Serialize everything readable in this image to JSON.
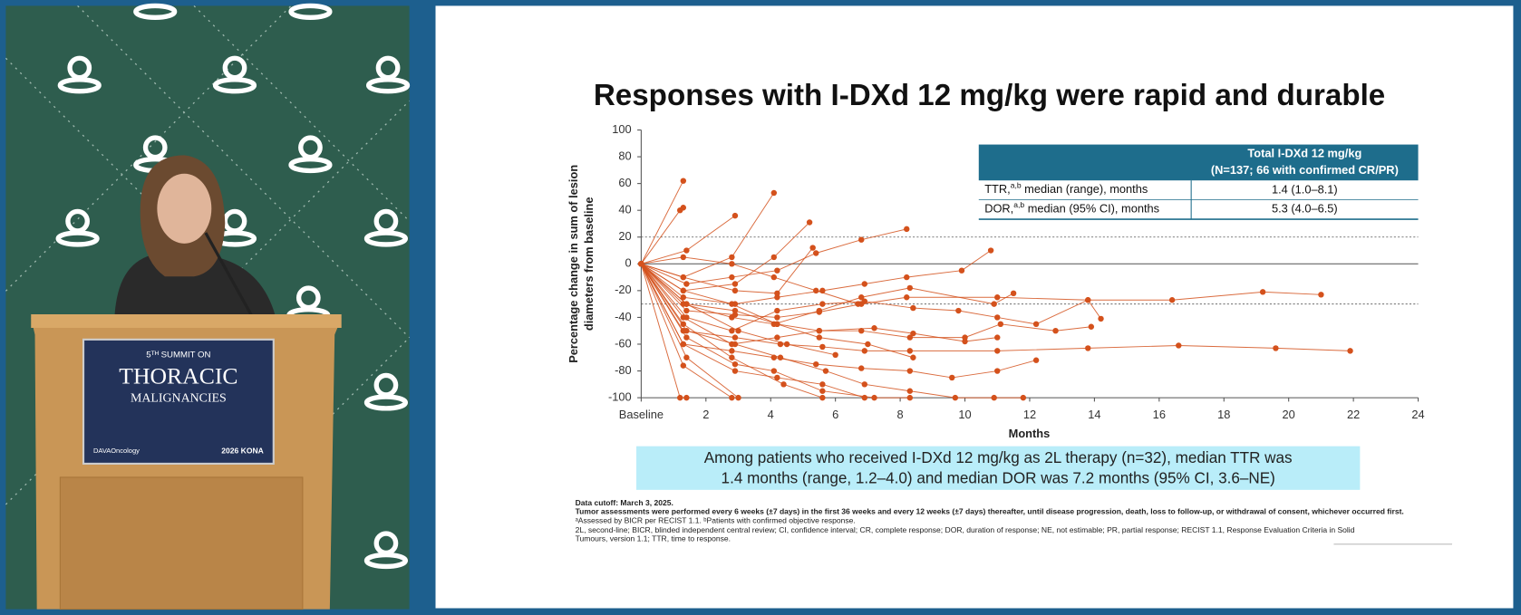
{
  "podium_sign": {
    "line1": "5ᵀᴴ SUMMIT ON",
    "line2": "THORACIC",
    "line3": "MALIGNANCIES",
    "logo_left": "DAVAOncology",
    "logo_right": "2026 KONA"
  },
  "slide": {
    "title": "Responses with I-DXd 12 mg/kg were rapid and durable",
    "table": {
      "header": [
        "Total I-DXd 12 mg/kg",
        "(N=137; 66 with confirmed CR/PR)"
      ],
      "rows": [
        {
          "label": "TTR,",
          "sup": "a,b",
          "rest": " median (range), months",
          "value": "1.4 (1.0–8.1)"
        },
        {
          "label": "DOR,",
          "sup": "a,b",
          "rest": " median (95% CI), months",
          "value": "5.3 (4.0–6.5)"
        }
      ]
    },
    "callout": [
      "Among patients who received I-DXd 12 mg/kg as 2L therapy (n=32), median TTR was",
      "1.4 months (range, 1.2–4.0) and median DOR was 7.2 months (95% CI, 3.6–NE)"
    ],
    "footnotes": [
      "Data cutoff: March 3, 2025.",
      "Tumor assessments were performed every 6 weeks (±7 days) in the first 36 weeks and every 12 weeks (±7 days) thereafter, until disease progression, death, loss to follow-up, or withdrawal of consent, whichever occurred first.",
      "ᵃAssessed by BICR per RECIST 1.1. ᵇPatients with confirmed objective response.",
      "2L, second-line; BICR, blinded independent central review; CI, confidence interval; CR, complete response; DOR, duration of response; NE, not estimable; PR, partial response; RECIST 1.1, Response Evaluation Criteria in Solid",
      "Tumours, version 1.1; TTR, time to response."
    ]
  },
  "chart_data": {
    "type": "spider",
    "x_label": "Months",
    "y_label": [
      "Percentage change in sum of lesion",
      "diameters from baseline"
    ],
    "color": "#d4511c",
    "xlim": [
      0,
      24
    ],
    "xticks": [
      {
        "value": 0,
        "label": "Baseline"
      },
      2,
      4,
      6,
      8,
      10,
      12,
      14,
      16,
      18,
      20,
      22,
      24
    ],
    "ylim": [
      -100,
      100
    ],
    "yticks": [
      -100,
      -80,
      -60,
      -40,
      -20,
      0,
      20,
      40,
      60,
      80,
      100
    ],
    "reference_lines": [
      20,
      -30
    ],
    "zero_line": true,
    "series": [
      {
        "x": [
          0,
          1.3
        ],
        "values": [
          0,
          62
        ]
      },
      {
        "x": [
          0,
          1.2,
          1.3
        ],
        "values": [
          0,
          40,
          42
        ]
      },
      {
        "x": [
          0,
          1.4,
          2.9
        ],
        "values": [
          0,
          10,
          36
        ]
      },
      {
        "x": [
          0,
          1.3,
          2.8,
          4.1
        ],
        "values": [
          0,
          -10,
          5,
          53
        ]
      },
      {
        "x": [
          0,
          1.3,
          2.9,
          4.1,
          5.2
        ],
        "values": [
          0,
          -20,
          -15,
          5,
          31
        ]
      },
      {
        "x": [
          0,
          1.4,
          2.8,
          4.2,
          5.4,
          6.8,
          8.2
        ],
        "values": [
          0,
          -15,
          -10,
          -5,
          8,
          18,
          26
        ]
      },
      {
        "x": [
          0,
          1.3,
          2.9,
          4.2,
          5.6,
          6.9,
          8.2,
          9.9,
          10.8
        ],
        "values": [
          0,
          -25,
          -30,
          -25,
          -20,
          -15,
          -10,
          -5,
          10
        ]
      },
      {
        "x": [
          0,
          1.3,
          2.8,
          4.1,
          5.5,
          6.8,
          8.3,
          10.9,
          11.5
        ],
        "values": [
          0,
          -30,
          -40,
          -45,
          -35,
          -25,
          -18,
          -30,
          -22
        ]
      },
      {
        "x": [
          0,
          1.4,
          2.8,
          4.2,
          5.6,
          6.9,
          8.4,
          9.8,
          11,
          12.2,
          13.8,
          14.2
        ],
        "values": [
          0,
          -40,
          -50,
          -35,
          -30,
          -28,
          -33,
          -35,
          -40,
          -45,
          -27,
          -41
        ]
      },
      {
        "x": [
          0,
          1.3,
          2.9,
          4.3,
          5.6,
          6.9,
          8.3,
          11,
          13.8,
          16.6,
          19.6,
          21.9
        ],
        "values": [
          0,
          -50,
          -55,
          -60,
          -62,
          -65,
          -65,
          -65,
          -63,
          -61,
          -63,
          -65
        ]
      },
      {
        "x": [
          0,
          1.4,
          2.9,
          4.2,
          5.5,
          6.8,
          8.2,
          11,
          13.8,
          16.4,
          19.2,
          21
        ],
        "values": [
          0,
          -35,
          -38,
          -40,
          -36,
          -30,
          -25,
          -25,
          -27,
          -27,
          -21,
          -23
        ]
      },
      {
        "x": [
          0,
          1.3,
          2.8,
          4.1,
          5.4,
          6.8,
          8.3,
          9.6,
          11,
          12.2
        ],
        "values": [
          0,
          -60,
          -65,
          -70,
          -75,
          -78,
          -80,
          -85,
          -80,
          -72
        ]
      },
      {
        "x": [
          0,
          1.2,
          1.4
        ],
        "values": [
          0,
          -100,
          -100
        ]
      },
      {
        "x": [
          0,
          1.3,
          2.8
        ],
        "values": [
          0,
          -76,
          -100
        ]
      },
      {
        "x": [
          0,
          1.4,
          3
        ],
        "values": [
          0,
          -70,
          -100
        ]
      },
      {
        "x": [
          0,
          1.3,
          2.9,
          4.2,
          5.6,
          6.9
        ],
        "values": [
          0,
          -60,
          -80,
          -85,
          -90,
          -100
        ]
      },
      {
        "x": [
          0,
          1.4,
          2.9,
          4.1,
          5.6,
          7.2,
          8.3
        ],
        "values": [
          0,
          -55,
          -75,
          -80,
          -95,
          -100,
          -100
        ]
      },
      {
        "x": [
          0,
          1.3,
          2.8,
          4.4,
          5.6
        ],
        "values": [
          0,
          -45,
          -70,
          -90,
          -100
        ]
      },
      {
        "x": [
          0,
          1.4,
          2.9,
          4.3,
          5.7,
          6.9,
          8.3,
          9.7,
          10.9,
          11.8
        ],
        "values": [
          0,
          -50,
          -60,
          -70,
          -80,
          -90,
          -95,
          -100,
          -100,
          -100
        ]
      },
      {
        "x": [
          0,
          1.3,
          2.8,
          4.2,
          5.5,
          7,
          8.4
        ],
        "values": [
          0,
          -20,
          -30,
          -45,
          -55,
          -60,
          -70
        ]
      },
      {
        "x": [
          0,
          1.3,
          2.8,
          4.1,
          5.4,
          6.7
        ],
        "values": [
          0,
          5,
          0,
          -10,
          -20,
          -30
        ]
      },
      {
        "x": [
          0,
          1.3,
          2.9,
          4.2,
          5.3
        ],
        "values": [
          0,
          -10,
          -20,
          -22,
          12
        ]
      },
      {
        "x": [
          0,
          1.4,
          2.9,
          4.2,
          5.5,
          6.8,
          8.3,
          10,
          11.1,
          12.8,
          13.9
        ],
        "values": [
          0,
          -30,
          -35,
          -45,
          -50,
          -50,
          -55,
          -55,
          -45,
          -50,
          -47
        ]
      },
      {
        "x": [
          0,
          1.3,
          2.8,
          4.2,
          5.5,
          7.2,
          8.4,
          10,
          11
        ],
        "values": [
          0,
          -40,
          -60,
          -55,
          -50,
          -48,
          -52,
          -58,
          -55
        ]
      },
      {
        "x": [
          0,
          1.4,
          3,
          4.5,
          6
        ],
        "values": [
          0,
          -30,
          -50,
          -60,
          -68
        ]
      }
    ]
  }
}
